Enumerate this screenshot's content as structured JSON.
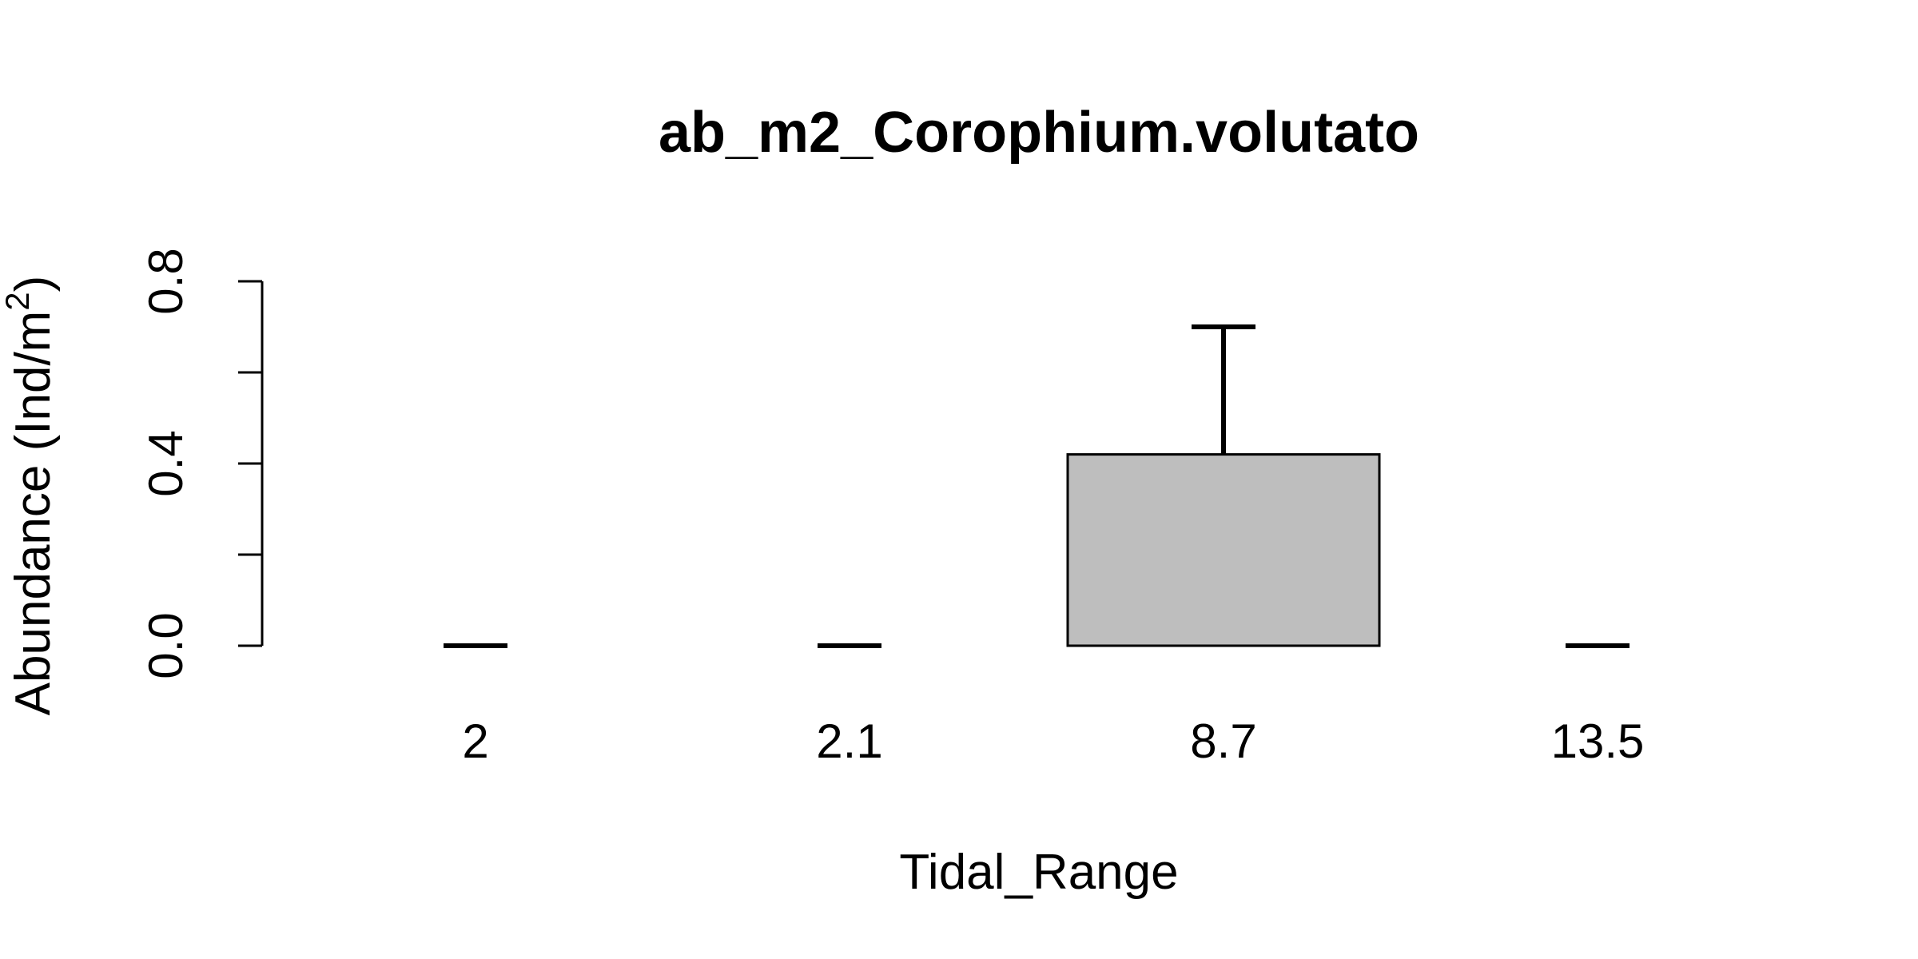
{
  "chart_data": {
    "type": "bar",
    "title": "ab_m2_Corophium.volutato",
    "xlabel": "Tidal_Range",
    "ylabel": {
      "main": "Abundance (Ind/m",
      "superscript": "2",
      "close": ")"
    },
    "categories": [
      "2",
      "2.1",
      "8.7",
      "13.5"
    ],
    "values": [
      0.0,
      0.0,
      0.42,
      0.0
    ],
    "error_upper": [
      0.0,
      0.0,
      0.7,
      0.0
    ],
    "ylim": [
      0,
      0.8
    ],
    "yticks": [
      0.0,
      0.2,
      0.4,
      0.6,
      0.8
    ],
    "ytick_labels": [
      "0.0",
      "0.4",
      "0.8"
    ],
    "bar_color": "#bebebe",
    "grid": false,
    "legend": "none"
  }
}
